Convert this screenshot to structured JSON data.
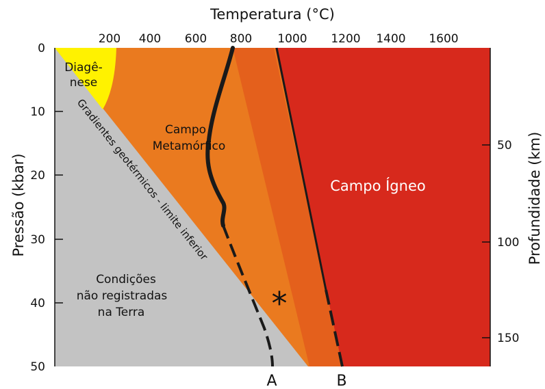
{
  "title_top": "Temperatura (°C)",
  "ylabel_left": "Pressão (kbar)",
  "ylabel_right": "Profundidade (km)",
  "x_ticks": [
    "200",
    "400",
    "600",
    "800",
    "1000",
    "1200",
    "1400",
    "1600"
  ],
  "y_left_ticks": [
    "0",
    "10",
    "20",
    "30",
    "40",
    "50"
  ],
  "y_right_ticks": [
    "50",
    "100",
    "150"
  ],
  "regions": {
    "diagenese": [
      "Diagê-",
      "nese"
    ],
    "metamorfico": [
      "Campo",
      "Metamórfico"
    ],
    "igneo": "Campo Ígneo",
    "nao_registradas": [
      "Condições",
      "não registradas",
      "na Terra"
    ],
    "gradiente": "Gradientes geotérmicos - limite inferior"
  },
  "markers": {
    "a": "A",
    "b": "B",
    "star": "*"
  },
  "colors": {
    "grey": "#c3c3c3",
    "yellow": "#fff200",
    "orange": "#ea7a1f",
    "orange_dark": "#e4601c",
    "red": "#d7291c"
  }
}
